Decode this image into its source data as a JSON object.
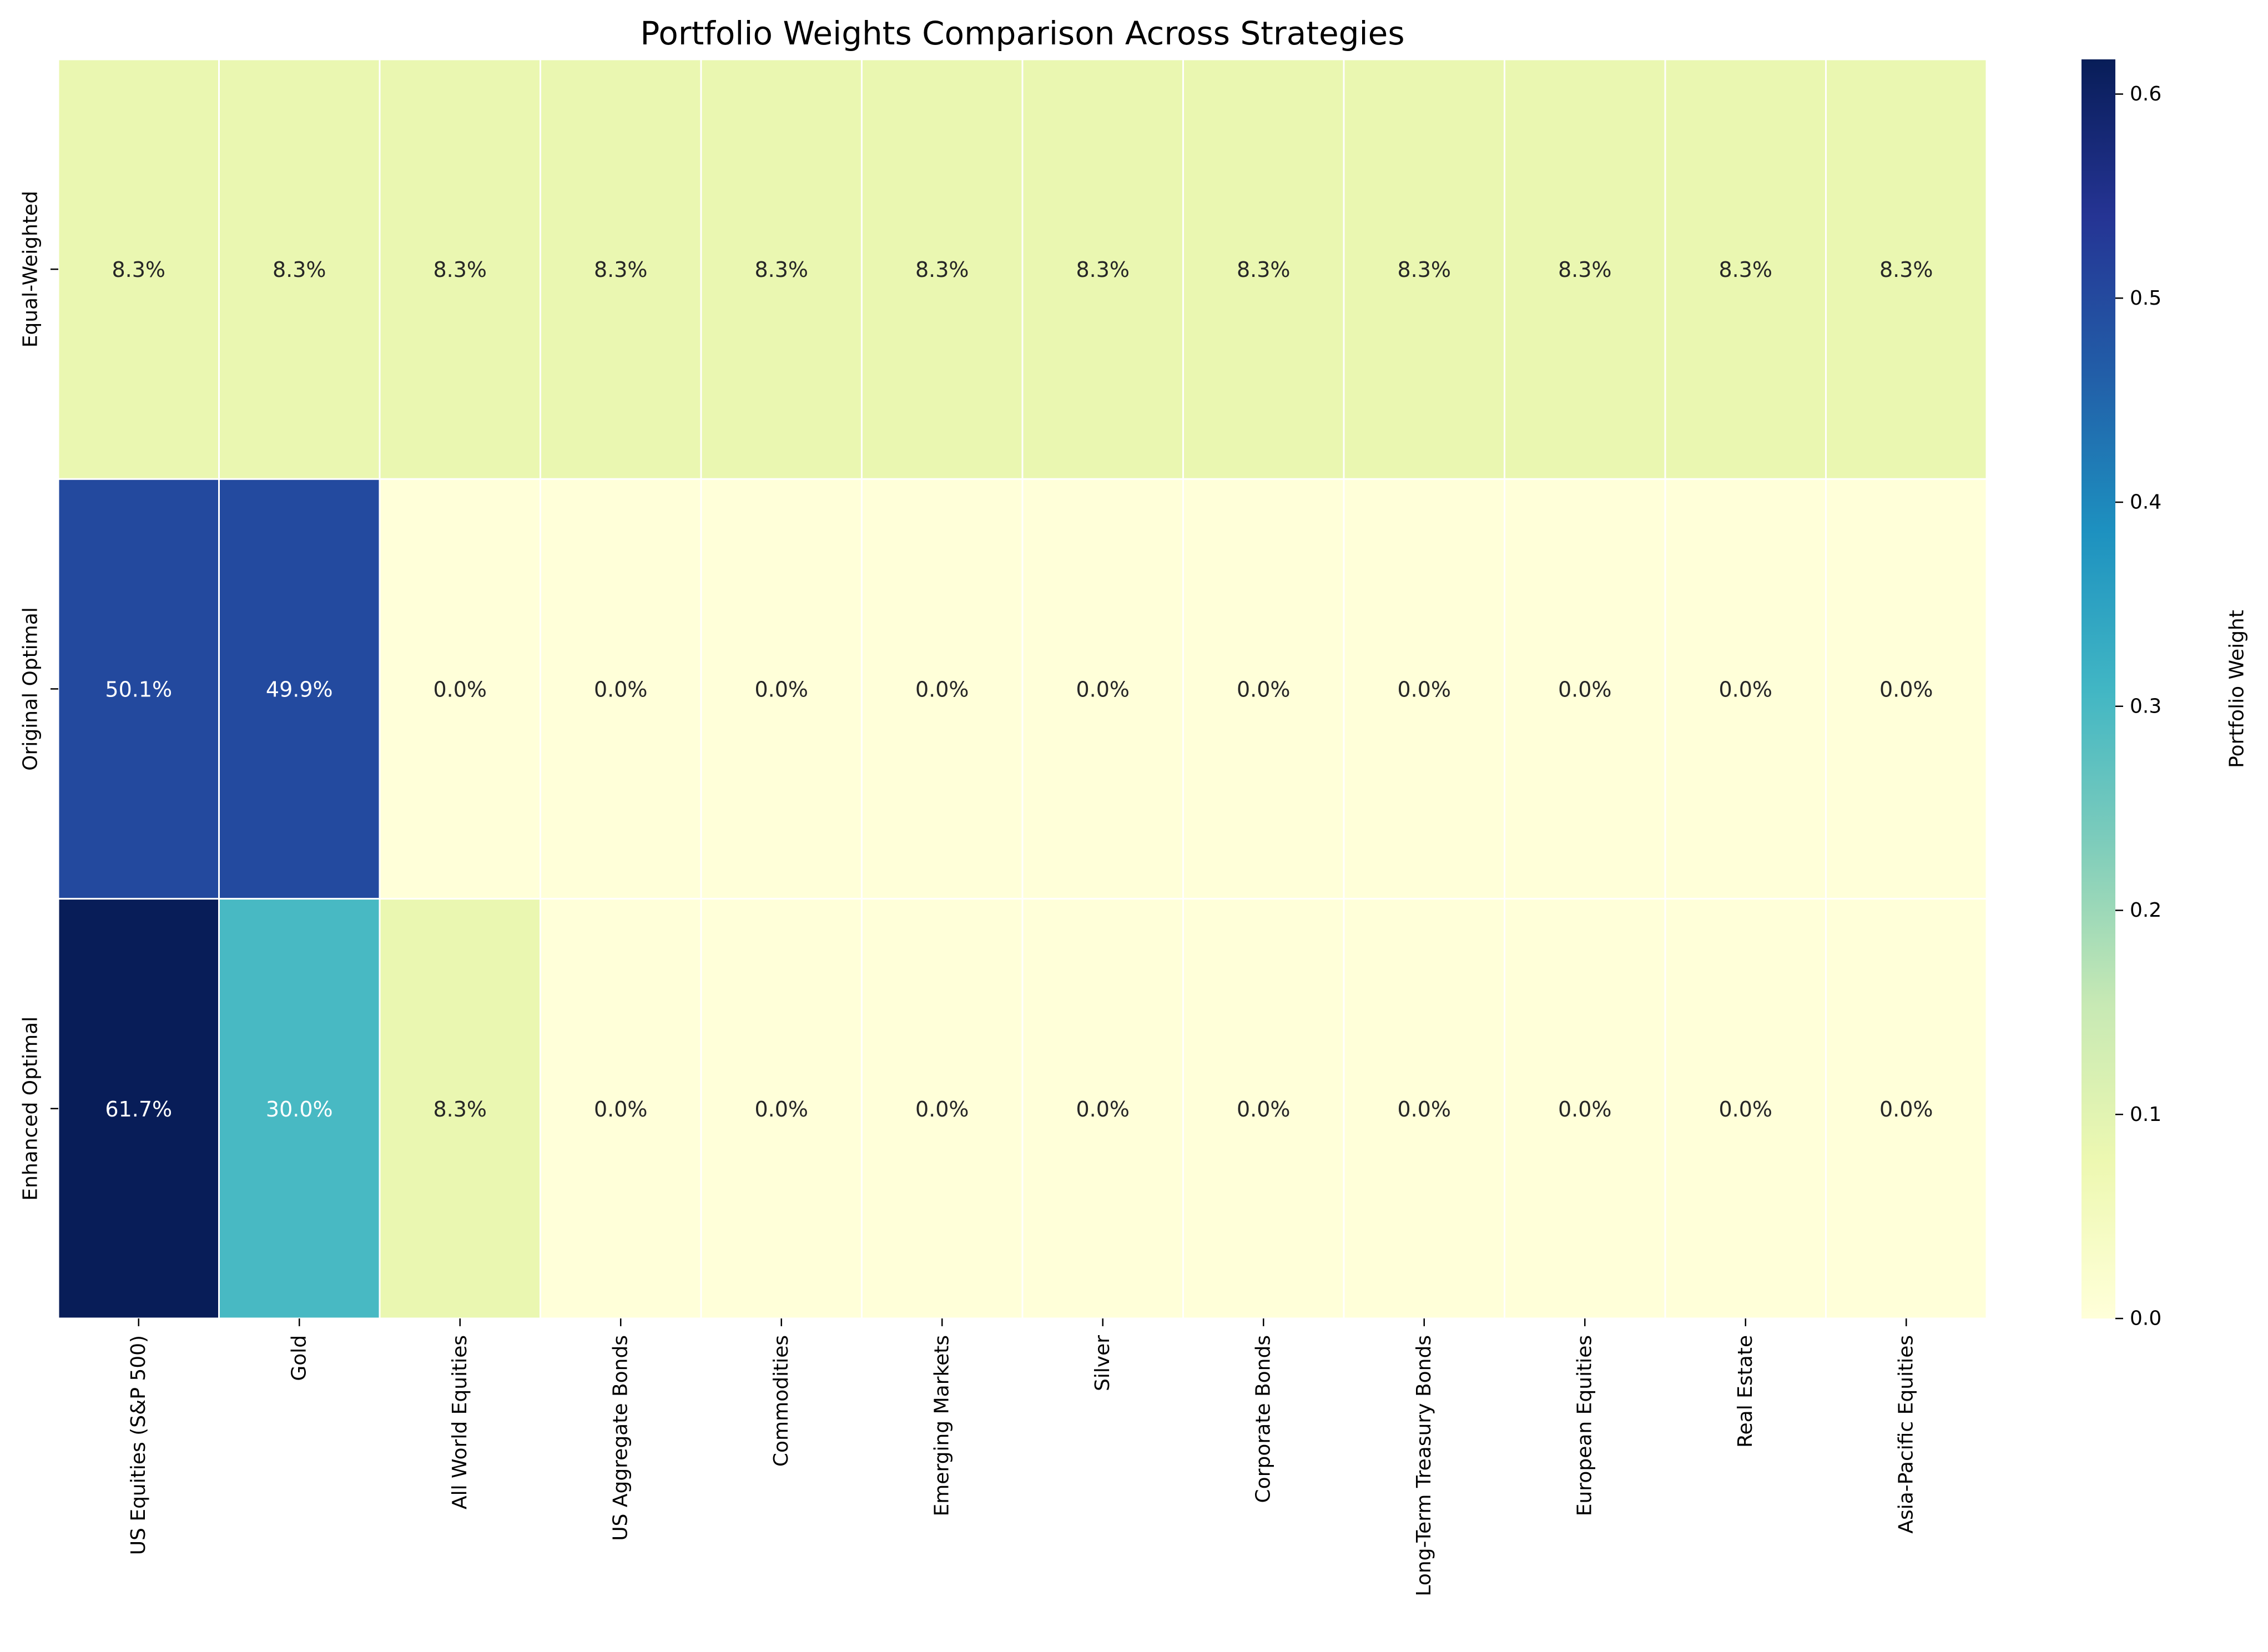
{
  "chart_data": {
    "type": "heatmap",
    "title": "Portfolio Weights Comparison Across Strategies",
    "xlabel": "",
    "ylabel": "",
    "rows": [
      "Equal-Weighted",
      "Original Optimal",
      "Enhanced Optimal"
    ],
    "columns": [
      "US Equities (S&P 500)",
      "Gold",
      "All World Equities",
      "US Aggregate Bonds",
      "Commodities",
      "Emerging Markets",
      "Silver",
      "Corporate Bonds",
      "Long-Term Treasury Bonds",
      "European Equities",
      "Real Estate",
      "Asia-Pacific Equities"
    ],
    "values": [
      [
        0.083,
        0.083,
        0.083,
        0.083,
        0.083,
        0.083,
        0.083,
        0.083,
        0.083,
        0.083,
        0.083,
        0.083
      ],
      [
        0.501,
        0.499,
        0.0,
        0.0,
        0.0,
        0.0,
        0.0,
        0.0,
        0.0,
        0.0,
        0.0,
        0.0
      ],
      [
        0.617,
        0.3,
        0.083,
        0.0,
        0.0,
        0.0,
        0.0,
        0.0,
        0.0,
        0.0,
        0.0,
        0.0
      ]
    ],
    "annotations": [
      [
        "8.3%",
        "8.3%",
        "8.3%",
        "8.3%",
        "8.3%",
        "8.3%",
        "8.3%",
        "8.3%",
        "8.3%",
        "8.3%",
        "8.3%",
        "8.3%"
      ],
      [
        "50.1%",
        "49.9%",
        "0.0%",
        "0.0%",
        "0.0%",
        "0.0%",
        "0.0%",
        "0.0%",
        "0.0%",
        "0.0%",
        "0.0%",
        "0.0%"
      ],
      [
        "61.7%",
        "30.0%",
        "8.3%",
        "0.0%",
        "0.0%",
        "0.0%",
        "0.0%",
        "0.0%",
        "0.0%",
        "0.0%",
        "0.0%",
        "0.0%"
      ]
    ],
    "colorbar": {
      "label": "Portfolio Weight",
      "min": 0.0,
      "max": 0.617,
      "ticks": [
        "0.0",
        "0.1",
        "0.2",
        "0.3",
        "0.4",
        "0.5",
        "0.6"
      ],
      "tick_values": [
        0.0,
        0.1,
        0.2,
        0.3,
        0.4,
        0.5,
        0.6
      ],
      "colormap": "YlGnBu",
      "colormap_stops": [
        "#ffffd9",
        "#edf8b1",
        "#c7e9b4",
        "#7fcdbb",
        "#41b6c4",
        "#1d91c0",
        "#225ea8",
        "#253494",
        "#081d58"
      ]
    },
    "grid": false,
    "legend": "colorbar-right",
    "text_color_dark": "#262626",
    "text_color_light": "#ffffff"
  }
}
